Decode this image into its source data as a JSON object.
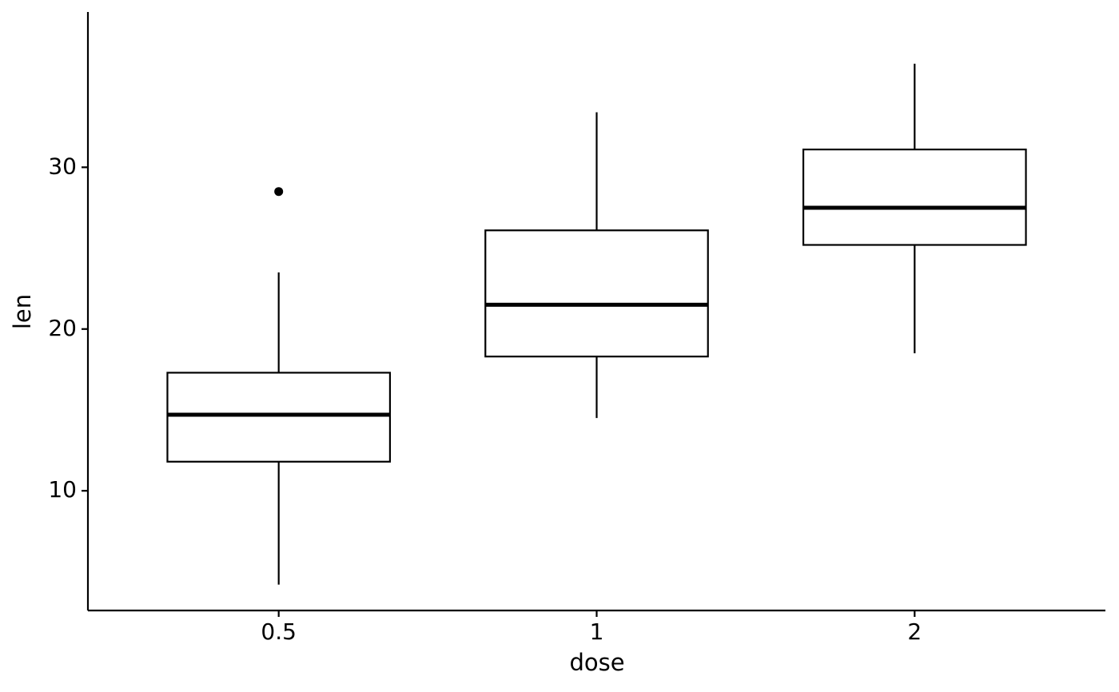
{
  "chart_data": {
    "type": "box",
    "x_label": "dose",
    "y_label": "len",
    "categories": [
      "0.5",
      "1",
      "2"
    ],
    "boxes": [
      {
        "min": 4.2,
        "q1": 11.8,
        "median": 14.7,
        "q3": 17.3,
        "max": 23.5,
        "outliers": [
          28.5
        ]
      },
      {
        "min": 14.5,
        "q1": 18.3,
        "median": 21.5,
        "q3": 26.1,
        "max": 33.4,
        "outliers": []
      },
      {
        "min": 18.5,
        "q1": 25.2,
        "median": 27.5,
        "q3": 31.1,
        "max": 36.4,
        "outliers": []
      }
    ],
    "color": "#000000",
    "fill": "#ffffff",
    "ylim": [
      2.6,
      39.6
    ],
    "yticks": [
      10,
      20,
      30
    ],
    "grid": false
  }
}
